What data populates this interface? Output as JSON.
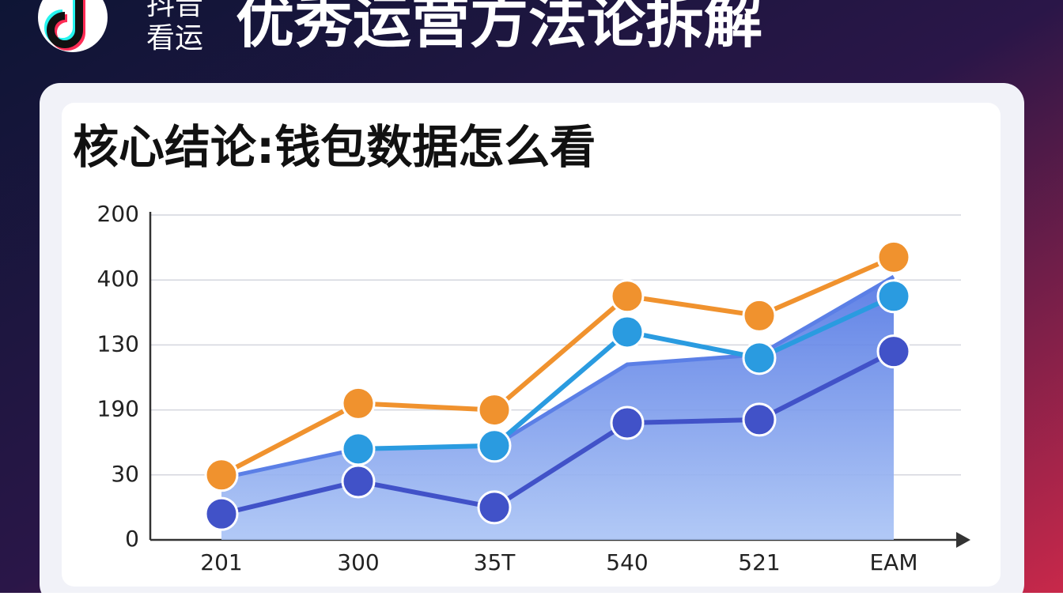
{
  "header": {
    "logo_lines": [
      "抖音",
      "看运"
    ],
    "title": "优秀运营方法论拆解"
  },
  "chart_data": {
    "type": "line",
    "title": "核心结论:钱包数据怎么看",
    "categories": [
      "201",
      "300",
      "35T",
      "540",
      "521",
      "EAM"
    ],
    "area": {
      "color": "#5b7fe6",
      "values": [
        0.95,
        1.4,
        1.45,
        2.7,
        2.85,
        4.05
      ]
    },
    "series": [
      {
        "color": "#f0922e",
        "values": [
          1.0,
          2.1,
          2.0,
          3.75,
          3.45,
          4.35
        ]
      },
      {
        "color": "#2a9be0",
        "values": [
          null,
          1.4,
          1.45,
          3.2,
          2.8,
          3.75
        ]
      },
      {
        "color": "#4152c8",
        "values": [
          0.4,
          0.9,
          0.5,
          1.8,
          1.85,
          2.9
        ]
      }
    ],
    "ylim": [
      0,
      5
    ],
    "yticks": [
      {
        "value": 0,
        "label": "0"
      },
      {
        "value": 1,
        "label": "30"
      },
      {
        "value": 2,
        "label": "190"
      },
      {
        "value": 3,
        "label": "130"
      },
      {
        "value": 4,
        "label": "400"
      },
      {
        "value": 5,
        "label": "200"
      }
    ],
    "grid": true
  }
}
